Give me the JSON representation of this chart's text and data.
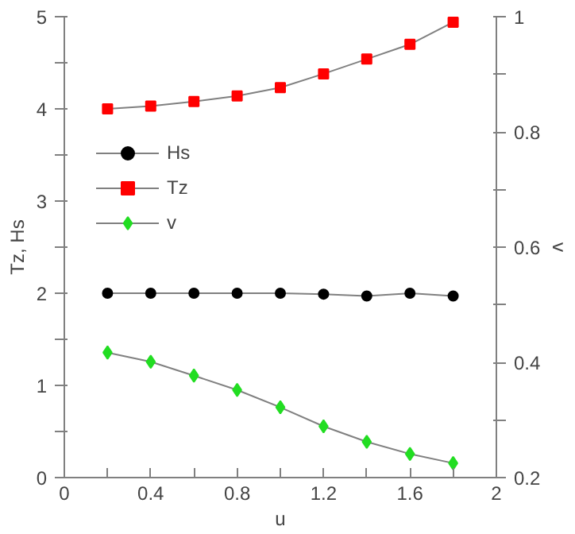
{
  "chart_data": {
    "type": "line",
    "xlabel": "u",
    "ylabel": "Tz, Hs",
    "y2label": "v",
    "x": [
      0.2,
      0.4,
      0.6,
      0.8,
      1.0,
      1.2,
      1.4,
      1.6,
      1.8
    ],
    "series": [
      {
        "name": "Hs",
        "color": "#000000",
        "marker": "circle",
        "values": [
          2.0,
          2.0,
          2.0,
          2.0,
          2.0,
          1.99,
          1.97,
          2.0,
          1.97
        ]
      },
      {
        "name": "Tz",
        "color": "#ff0000",
        "marker": "square",
        "values": [
          4.0,
          4.03,
          4.08,
          4.14,
          4.23,
          4.38,
          4.54,
          4.7,
          4.94
        ]
      },
      {
        "name": "v",
        "color": "#22dd22",
        "marker": "diamond",
        "axis": "y2",
        "values": [
          0.417,
          0.401,
          0.377,
          0.352,
          0.322,
          0.289,
          0.262,
          0.241,
          0.225
        ]
      }
    ],
    "xlim": [
      0,
      2
    ],
    "xticks": [
      0,
      {
        "value": 0.2,
        "label": null
      },
      0.4,
      {
        "value": 0.6,
        "label": null
      },
      0.8,
      {
        "value": 1.0,
        "label": null
      },
      1.2,
      {
        "value": 1.4,
        "label": null
      },
      1.6,
      {
        "value": 1.8,
        "label": null
      },
      2
    ],
    "ylim": [
      0,
      5
    ],
    "yticks": [
      0,
      {
        "value": 0.5,
        "label": null
      },
      1,
      {
        "value": 1.5,
        "label": null
      },
      2,
      {
        "value": 2.5,
        "label": null
      },
      3,
      {
        "value": 3.5,
        "label": null
      },
      4,
      {
        "value": 4.5,
        "label": null
      },
      5
    ],
    "y2lim": [
      0.2,
      1
    ],
    "y2ticks": [
      0.2,
      {
        "value": 0.3,
        "label": null
      },
      0.4,
      {
        "value": 0.5,
        "label": null
      },
      0.6,
      {
        "value": 0.7,
        "label": null
      },
      0.8,
      {
        "value": 0.9,
        "label": null
      },
      1
    ],
    "legend": "left",
    "grid": false,
    "line_style": "solid"
  }
}
